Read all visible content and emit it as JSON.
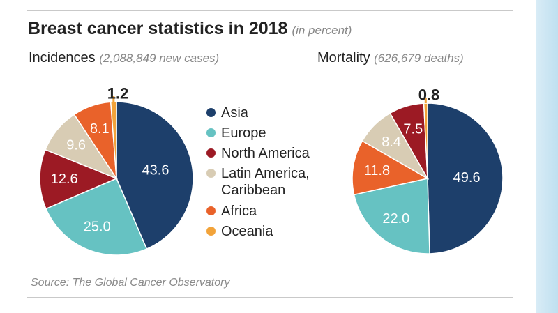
{
  "title": "Breast cancer statistics in 2018",
  "unit": "(in percent)",
  "source": "Source: The Global Cancer Observatory",
  "colors": {
    "Asia": "#1d3f6b",
    "Europe": "#66c2c2",
    "North America": "#9c1a24",
    "Latin America, Caribbean": "#d8ccb4",
    "Africa": "#e9622a",
    "Oceania": "#f2a33a"
  },
  "legend": [
    {
      "label": "Asia",
      "color": "#1d3f6b"
    },
    {
      "label": "Europe",
      "color": "#66c2c2"
    },
    {
      "label": "North America",
      "color": "#9c1a24"
    },
    {
      "label": "Latin America, Caribbean",
      "color": "#d8ccb4"
    },
    {
      "label": "Africa",
      "color": "#e9622a"
    },
    {
      "label": "Oceania",
      "color": "#f2a33a"
    }
  ],
  "chart_data": [
    {
      "type": "pie",
      "title": "Incidences",
      "subtitle": "(2,088,849 new cases)",
      "categories": [
        "Asia",
        "Europe",
        "North America",
        "Latin America, Caribbean",
        "Africa",
        "Oceania"
      ],
      "values": [
        43.6,
        25.0,
        12.6,
        9.6,
        8.1,
        1.2
      ],
      "labels": [
        "43.6",
        "25.0",
        "12.6",
        "9.6",
        "8.1",
        "1.2"
      ]
    },
    {
      "type": "pie",
      "title": "Mortality",
      "subtitle": "(626,679 deaths)",
      "categories": [
        "Asia",
        "Europe",
        "Africa",
        "Latin America, Caribbean",
        "North America",
        "Oceania"
      ],
      "values": [
        49.6,
        22.0,
        11.8,
        8.4,
        7.5,
        0.8
      ],
      "labels": [
        "49.6",
        "22.0",
        "11.8",
        "8.4",
        "7.5",
        "0.8"
      ]
    }
  ]
}
